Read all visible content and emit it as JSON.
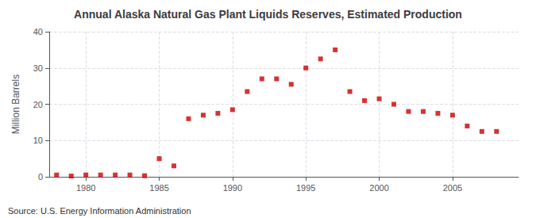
{
  "chart_data": {
    "type": "scatter",
    "title": "Annual Alaska Natural Gas Plant Liquids Reserves, Estimated Production",
    "ylabel": "Million Barrels",
    "annotations": [
      "Source: U.S. Energy Information Administration"
    ],
    "x": [
      1978,
      1979,
      1980,
      1981,
      1982,
      1983,
      1984,
      1985,
      1986,
      1987,
      1988,
      1989,
      1990,
      1991,
      1992,
      1993,
      1994,
      1995,
      1996,
      1997,
      1998,
      1999,
      2000,
      2001,
      2002,
      2003,
      2004,
      2005,
      2006,
      2007,
      2008
    ],
    "values": [
      0.5,
      0.2,
      0.5,
      0.5,
      0.5,
      0.5,
      0.3,
      5.0,
      3.0,
      16.0,
      17.0,
      17.5,
      18.5,
      23.5,
      27.0,
      27.0,
      25.5,
      30.0,
      32.5,
      35.0,
      23.5,
      21.0,
      21.5,
      20.0,
      18.0,
      18.0,
      17.5,
      17.0,
      14.0,
      12.5,
      12.5
    ],
    "color": "#cc0000",
    "marker": "square",
    "xlim": [
      1977.5,
      2009.5
    ],
    "xticks": [
      1980,
      1985,
      1990,
      1995,
      2000,
      2005
    ],
    "ylim": [
      0,
      40
    ],
    "yticks": [
      0,
      10,
      20,
      30,
      40
    ],
    "grid": true
  }
}
